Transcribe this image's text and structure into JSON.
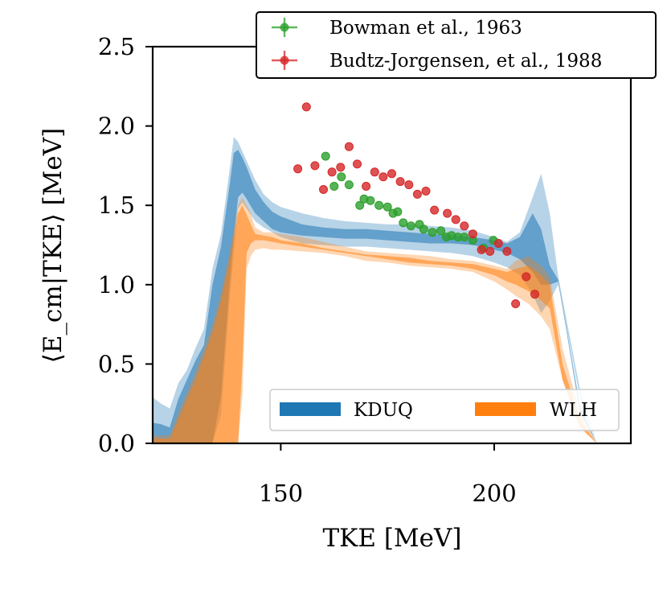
{
  "chart_data": {
    "type": "scatter",
    "xlabel": "TKE [MeV]",
    "ylabel": "⟨E_cm|TKE⟩ [MeV]",
    "xlim": [
      120,
      232
    ],
    "ylim": [
      0,
      2.5
    ],
    "xticks": [
      150,
      200
    ],
    "yticks": [
      0.0,
      0.5,
      1.0,
      1.5,
      2.0,
      2.5
    ],
    "grid": false,
    "series": [
      {
        "name": "Bowman et al., 1963",
        "kind": "points",
        "color": "#2ca02c",
        "x": [
          160.5,
          162.5,
          164.2,
          166.0,
          168.5,
          169.5,
          171.0,
          173.0,
          175.0,
          176.3,
          177.4,
          178.7,
          180.5,
          182.5,
          183.5,
          185.5,
          187.5,
          188.8,
          190.0,
          191.5,
          193.0,
          195.0,
          197.5,
          199.8
        ],
        "y": [
          1.81,
          1.62,
          1.68,
          1.63,
          1.5,
          1.54,
          1.53,
          1.5,
          1.49,
          1.45,
          1.46,
          1.39,
          1.37,
          1.38,
          1.35,
          1.33,
          1.34,
          1.3,
          1.31,
          1.3,
          1.3,
          1.28,
          1.23,
          1.28
        ]
      },
      {
        "name": "Budtz-Jorgensen, et al., 1988",
        "kind": "points",
        "color": "#d62728",
        "x": [
          154.0,
          156.0,
          158.0,
          160.0,
          162.0,
          164.0,
          166.0,
          167.9,
          170.0,
          172.0,
          174.0,
          176.0,
          178.0,
          180.0,
          182.0,
          184.0,
          186.0,
          189.0,
          191.0,
          193.0,
          195.0,
          197.0,
          199.0,
          201.0,
          203.0,
          205.0,
          207.5,
          209.5
        ],
        "y": [
          1.73,
          2.12,
          1.75,
          1.6,
          1.71,
          1.74,
          1.87,
          1.76,
          1.62,
          1.71,
          1.68,
          1.7,
          1.65,
          1.63,
          1.57,
          1.59,
          1.47,
          1.45,
          1.41,
          1.37,
          1.32,
          1.22,
          1.21,
          1.26,
          1.21,
          0.88,
          1.05,
          0.94
        ]
      },
      {
        "name": "KDUQ",
        "kind": "band",
        "color": "#1f77b4",
        "x": [
          120,
          122,
          124,
          126,
          128,
          130,
          132,
          134,
          136,
          138,
          139,
          140,
          141,
          142,
          144,
          146,
          148,
          150,
          155,
          160,
          165,
          170,
          175,
          180,
          185,
          190,
          195,
          200,
          203,
          206,
          209,
          211,
          213,
          215,
          220,
          224
        ],
        "outer_low": [
          0.0,
          0.0,
          0.0,
          0.0,
          0.0,
          0.0,
          0.0,
          0.0,
          0.18,
          0.9,
          1.2,
          1.48,
          1.52,
          1.48,
          1.4,
          1.36,
          1.33,
          1.3,
          1.26,
          1.25,
          1.24,
          1.24,
          1.23,
          1.22,
          1.21,
          1.2,
          1.18,
          1.14,
          1.11,
          1.06,
          0.94,
          0.82,
          0.9,
          1.0,
          0.3,
          0.0
        ],
        "outer_high": [
          0.29,
          0.25,
          0.22,
          0.38,
          0.46,
          0.6,
          0.72,
          1.1,
          1.32,
          1.72,
          1.93,
          1.9,
          1.84,
          1.78,
          1.66,
          1.57,
          1.52,
          1.49,
          1.45,
          1.42,
          1.4,
          1.39,
          1.38,
          1.38,
          1.37,
          1.36,
          1.34,
          1.3,
          1.27,
          1.33,
          1.55,
          1.7,
          1.45,
          1.05,
          0.35,
          0.0
        ],
        "inner_low": [
          0.0,
          0.0,
          0.0,
          0.0,
          0.0,
          0.0,
          0.0,
          0.0,
          0.3,
          1.0,
          1.3,
          1.55,
          1.58,
          1.54,
          1.45,
          1.4,
          1.35,
          1.33,
          1.31,
          1.3,
          1.29,
          1.29,
          1.28,
          1.27,
          1.26,
          1.26,
          1.25,
          1.22,
          1.2,
          1.16,
          1.08,
          1.0,
          1.0,
          1.02,
          0.2,
          0.0
        ],
        "inner_high": [
          0.13,
          0.12,
          0.1,
          0.28,
          0.4,
          0.52,
          0.62,
          1.0,
          1.24,
          1.62,
          1.83,
          1.85,
          1.8,
          1.74,
          1.6,
          1.52,
          1.46,
          1.43,
          1.38,
          1.36,
          1.35,
          1.35,
          1.34,
          1.33,
          1.32,
          1.31,
          1.3,
          1.28,
          1.26,
          1.3,
          1.45,
          1.35,
          1.12,
          1.03,
          0.25,
          0.0
        ]
      },
      {
        "name": "WLH",
        "kind": "band",
        "color": "#ff7f0e",
        "x": [
          120,
          122,
          124,
          126,
          128,
          130,
          132,
          134,
          136,
          138,
          140,
          141,
          142,
          143,
          144,
          146,
          148,
          150,
          155,
          160,
          165,
          170,
          175,
          180,
          185,
          190,
          195,
          200,
          203,
          205,
          208,
          211,
          213,
          216,
          220,
          224
        ],
        "outer_low": [
          0.0,
          0.0,
          0.0,
          0.0,
          0.0,
          0.0,
          0.0,
          0.0,
          0.0,
          0.0,
          0.0,
          0.3,
          1.1,
          1.18,
          1.22,
          1.23,
          1.22,
          1.22,
          1.21,
          1.2,
          1.18,
          1.15,
          1.14,
          1.12,
          1.11,
          1.1,
          1.08,
          1.02,
          0.97,
          0.93,
          0.88,
          0.8,
          0.72,
          0.4,
          0.12,
          0.0
        ],
        "outer_high": [
          0.05,
          0.05,
          0.05,
          0.2,
          0.32,
          0.45,
          0.6,
          0.75,
          0.95,
          1.2,
          1.5,
          1.55,
          1.5,
          1.45,
          1.36,
          1.33,
          1.33,
          1.32,
          1.3,
          1.27,
          1.24,
          1.21,
          1.2,
          1.19,
          1.18,
          1.16,
          1.15,
          1.12,
          1.1,
          1.15,
          1.18,
          1.12,
          1.05,
          0.6,
          0.2,
          0.0
        ],
        "inner_low": [
          0.0,
          0.0,
          0.0,
          0.0,
          0.0,
          0.0,
          0.0,
          0.0,
          0.0,
          0.0,
          0.0,
          0.5,
          1.2,
          1.26,
          1.28,
          1.28,
          1.27,
          1.26,
          1.24,
          1.22,
          1.2,
          1.18,
          1.16,
          1.14,
          1.13,
          1.12,
          1.1,
          1.06,
          1.02,
          1.0,
          0.96,
          0.9,
          0.85,
          0.4,
          0.1,
          0.0
        ],
        "inner_high": [
          0.03,
          0.03,
          0.03,
          0.15,
          0.28,
          0.4,
          0.55,
          0.7,
          0.9,
          1.15,
          1.45,
          1.5,
          1.44,
          1.38,
          1.32,
          1.31,
          1.3,
          1.28,
          1.26,
          1.23,
          1.21,
          1.19,
          1.18,
          1.17,
          1.15,
          1.14,
          1.13,
          1.1,
          1.08,
          1.1,
          1.12,
          1.06,
          1.0,
          0.5,
          0.15,
          0.0
        ]
      }
    ],
    "legend_top": {
      "placement": "top-right",
      "entries": [
        "Bowman et al., 1963",
        "Budtz-Jorgensen, et al., 1988"
      ]
    },
    "legend_bottom": {
      "placement": "lower-right",
      "entries": [
        "KDUQ",
        "WLH"
      ]
    }
  }
}
